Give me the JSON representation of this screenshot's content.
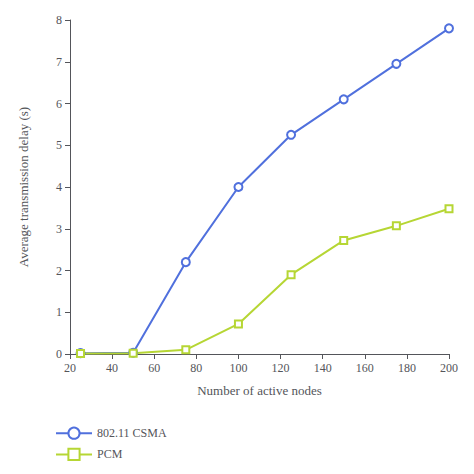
{
  "chart_data": {
    "type": "line",
    "x": [
      25,
      50,
      75,
      100,
      125,
      150,
      175,
      200
    ],
    "series": [
      {
        "name": "802.11 CSMA",
        "marker": "circle",
        "values": [
          0.02,
          0.03,
          2.2,
          4.0,
          5.25,
          6.1,
          6.95,
          7.8
        ]
      },
      {
        "name": "PCM",
        "marker": "square",
        "values": [
          0.01,
          0.02,
          0.1,
          0.72,
          1.9,
          2.72,
          3.07,
          3.48
        ]
      }
    ],
    "xlabel": "Number of active nodes",
    "ylabel": "Average transmission delay (s)",
    "xlim": [
      20,
      200
    ],
    "ylim": [
      0,
      8
    ],
    "xticks": [
      20,
      40,
      60,
      80,
      100,
      120,
      140,
      160,
      180,
      200
    ],
    "yticks": [
      0,
      1,
      2,
      3,
      4,
      5,
      6,
      7,
      8
    ],
    "grid": false,
    "legend": "lower left"
  }
}
